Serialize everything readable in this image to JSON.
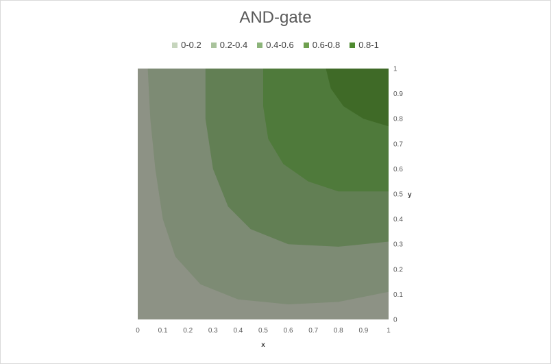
{
  "chart_data": {
    "type": "heatmap",
    "title": "AND-gate",
    "xlabel": "x",
    "ylabel": "y",
    "xlim": [
      0,
      1
    ],
    "ylim": [
      0,
      1
    ],
    "x_ticks": [
      "0",
      "0.1",
      "0.2",
      "0.3",
      "0.4",
      "0.5",
      "0.6",
      "0.7",
      "0.8",
      "0.9",
      "1"
    ],
    "y_ticks": [
      "0",
      "0.1",
      "0.2",
      "0.3",
      "0.4",
      "0.5",
      "0.6",
      "0.7",
      "0.8",
      "0.9",
      "1"
    ],
    "legend_position": "top",
    "bands": [
      {
        "name": "0-0.2",
        "range": [
          0,
          0.2
        ],
        "color": "#c6d5bd",
        "fill": "#8d9285"
      },
      {
        "name": "0.2-0.4",
        "range": [
          0.2,
          0.4
        ],
        "color": "#a9c39c",
        "fill": "#7d8b74"
      },
      {
        "name": "0.4-0.6",
        "range": [
          0.4,
          0.6
        ],
        "color": "#8cb47a",
        "fill": "#627f54"
      },
      {
        "name": "0.6-0.8",
        "range": [
          0.6,
          0.8
        ],
        "color": "#6fa04f",
        "fill": "#4f7a3b"
      },
      {
        "name": "0.8-1",
        "range": [
          0.8,
          1
        ],
        "color": "#4e8a2f",
        "fill": "#3f6a27"
      }
    ],
    "contours": [
      {
        "level": 0.2,
        "points": [
          [
            0.04,
            1.0
          ],
          [
            0.05,
            0.8
          ],
          [
            0.07,
            0.6
          ],
          [
            0.1,
            0.4
          ],
          [
            0.15,
            0.25
          ],
          [
            0.25,
            0.14
          ],
          [
            0.4,
            0.08
          ],
          [
            0.6,
            0.06
          ],
          [
            0.8,
            0.07
          ],
          [
            1.0,
            0.11
          ]
        ]
      },
      {
        "level": 0.4,
        "points": [
          [
            0.27,
            1.0
          ],
          [
            0.27,
            0.8
          ],
          [
            0.3,
            0.6
          ],
          [
            0.36,
            0.45
          ],
          [
            0.45,
            0.36
          ],
          [
            0.6,
            0.3
          ],
          [
            0.8,
            0.29
          ],
          [
            1.0,
            0.31
          ]
        ]
      },
      {
        "level": 0.6,
        "points": [
          [
            0.5,
            1.0
          ],
          [
            0.5,
            0.85
          ],
          [
            0.52,
            0.72
          ],
          [
            0.58,
            0.62
          ],
          [
            0.68,
            0.55
          ],
          [
            0.8,
            0.51
          ],
          [
            1.0,
            0.51
          ]
        ]
      },
      {
        "level": 0.8,
        "points": [
          [
            0.75,
            1.0
          ],
          [
            0.77,
            0.92
          ],
          [
            0.82,
            0.85
          ],
          [
            0.9,
            0.8
          ],
          [
            1.0,
            0.77
          ]
        ]
      }
    ]
  }
}
